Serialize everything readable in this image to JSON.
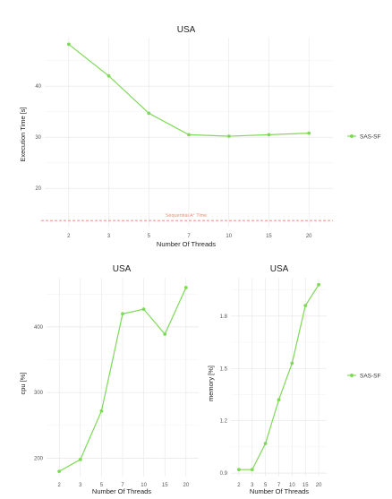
{
  "colors": {
    "series": "#7ed957",
    "reference": "#f07c6c",
    "grid": "#e6e6e6"
  },
  "legend": {
    "label": "SAS-SF",
    "placement": "right"
  },
  "chart_data": [
    {
      "id": "exec",
      "type": "line",
      "title": "USA",
      "xlabel": "Number Of Threads",
      "ylabel": "Execution Time [s]",
      "x": [
        "2",
        "3",
        "5",
        "7",
        "10",
        "15",
        "20"
      ],
      "series": [
        {
          "name": "SAS-SF",
          "values": [
            48.2,
            42.0,
            34.7,
            30.5,
            30.2,
            30.5,
            30.8
          ]
        }
      ],
      "ylim": [
        12.5,
        49.5
      ],
      "yticks": [
        20,
        30,
        40
      ],
      "reference_line": {
        "y": 13.7,
        "label": "Sequential A* Time"
      },
      "grid": true
    },
    {
      "id": "cpu",
      "type": "line",
      "title": "USA",
      "xlabel": "Number Of Threads",
      "ylabel": "cpu [%]",
      "x": [
        "2",
        "3",
        "5",
        "7",
        "10",
        "15",
        "20"
      ],
      "series": [
        {
          "name": "SAS-SF",
          "values": [
            180,
            198,
            272,
            420,
            427,
            389,
            460
          ]
        }
      ],
      "ylim": [
        172,
        475
      ],
      "yticks": [
        200,
        300,
        400
      ],
      "grid": true
    },
    {
      "id": "mem",
      "type": "line",
      "title": "USA",
      "xlabel": "Number Of Threads",
      "ylabel": "memory [%]",
      "x": [
        "2",
        "3",
        "5",
        "7",
        "10",
        "15",
        "20"
      ],
      "series": [
        {
          "name": "SAS-SF",
          "values": [
            0.92,
            0.92,
            1.07,
            1.32,
            1.53,
            1.86,
            1.98
          ]
        }
      ],
      "ylim": [
        0.88,
        2.02
      ],
      "yticks": [
        "0.9",
        "1.2",
        "1.5",
        "1.8"
      ],
      "grid": true
    }
  ]
}
